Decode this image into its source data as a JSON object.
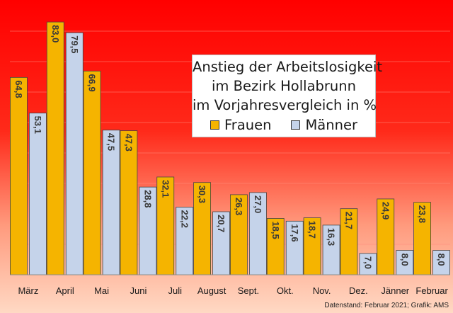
{
  "chart_data": {
    "type": "bar",
    "title_lines": [
      "Anstieg der Arbeitslosigkeit",
      "im Bezirk Hollabrunn",
      "im Vorjahresvergleich in %"
    ],
    "categories": [
      "März",
      "April",
      "Mai",
      "Juni",
      "Juli",
      "August",
      "Sept.",
      "Okt.",
      "Nov.",
      "Dez.",
      "Jänner",
      "Februar"
    ],
    "series": [
      {
        "name": "Frauen",
        "color": "#f5b400",
        "values": [
          64.8,
          83.0,
          66.9,
          47.3,
          32.1,
          30.3,
          26.3,
          18.5,
          18.7,
          21.7,
          24.9,
          23.8
        ],
        "labels": [
          "64,8",
          "83,0",
          "66,9",
          "47,3",
          "32,1",
          "30,3",
          "26,3",
          "18,5",
          "18,7",
          "21,7",
          "24,9",
          "23,8"
        ]
      },
      {
        "name": "Männer",
        "color": "#c5d3ea",
        "values": [
          53.1,
          79.5,
          47.5,
          28.8,
          22.2,
          20.7,
          27.0,
          17.6,
          16.3,
          7.0,
          8.0,
          8.0
        ],
        "labels": [
          "53,1",
          "79,5",
          "47,5",
          "28,8",
          "22,2",
          "20,7",
          "27,0",
          "17,6",
          "16,3",
          "7,0",
          "8,0",
          "8,0"
        ]
      }
    ],
    "ylim": [
      0,
      85
    ],
    "grid": true,
    "legend_position": "center-right, inside plot"
  },
  "source_note": "Datenstand: Februar 2021; Grafik: AMS",
  "colors": {
    "background_top": "#ff0000",
    "background_bottom": "#ffd9c4",
    "gridline": "#ff8a7a",
    "axis": "#8c8c8c"
  }
}
